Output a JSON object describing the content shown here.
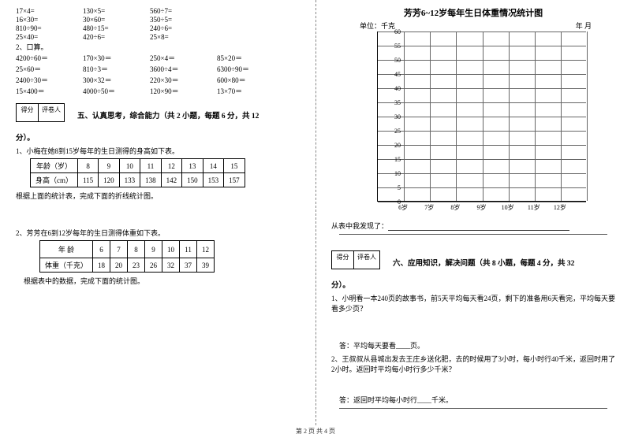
{
  "left": {
    "mult_rows": [
      [
        "17×4=",
        "130×5=",
        "560÷7="
      ],
      [
        "16×30=",
        "30×60=",
        "350÷5="
      ],
      [
        "810÷90=",
        "480÷15=",
        "240÷6="
      ],
      [
        "25×40=",
        "420÷6=",
        "25×8="
      ]
    ],
    "oral_label": "2、口算。",
    "oral_rows": [
      [
        "4200÷60＝",
        "170×30＝",
        "250×4＝",
        "85×20＝"
      ],
      [
        "25×60＝",
        "810÷3＝",
        "3600÷4＝",
        "6300÷90＝"
      ],
      [
        "2400÷30＝",
        "300×32＝",
        "220×30＝",
        "600×80＝"
      ],
      [
        "15×400＝",
        "4000÷50＝",
        "120×90＝",
        "13×70＝"
      ]
    ],
    "score_labels": [
      "得分",
      "评卷人"
    ],
    "section5_title": "五、认真思考，综合能力（共 2 小题，每题 6 分，共 12",
    "section5_tail": "分）。",
    "q1": "1、小梅在她8到15岁每年的生日测得的身高如下表。",
    "t1_head": [
      "年龄（岁）",
      "8",
      "9",
      "10",
      "11",
      "12",
      "13",
      "14",
      "15"
    ],
    "t1_row": [
      "身高（cm）",
      "115",
      "120",
      "133",
      "138",
      "142",
      "150",
      "153",
      "157"
    ],
    "q1_note": "根据上面的统计表，完成下面的折线统计图。",
    "q2": "2、芳芳在6到12岁每年的生日测得体重如下表。",
    "t2_head": [
      "年    龄",
      "6",
      "7",
      "8",
      "9",
      "10",
      "11",
      "12"
    ],
    "t2_row": [
      "体重（千克）",
      "18",
      "20",
      "23",
      "26",
      "32",
      "37",
      "39"
    ],
    "q2_note": "根据表中的数据，完成下面的统计图。"
  },
  "right": {
    "chart_title": "芳芳6~12岁每年生日体重情况统计图",
    "unit": "单位：千克",
    "date": "年    月",
    "y_ticks": [
      "60",
      "55",
      "50",
      "45",
      "40",
      "35",
      "30",
      "25",
      "20",
      "15",
      "10",
      "5",
      "0"
    ],
    "x_ticks": [
      "6岁",
      "7岁",
      "8岁",
      "9岁",
      "10岁",
      "11岁",
      "12岁"
    ],
    "finding": "从表中我发现了：",
    "score_labels": [
      "得分",
      "评卷人"
    ],
    "section6_title": "六、应用知识，解决问题（共 8 小题，每题 4 分，共 32",
    "section6_tail": "分）。",
    "p1": "1、小明看一本240页的故事书，前5天平均每天看24页，剩下的准备用6天看完，平均每天要看多少页？",
    "a1": "答：平均每天要看____页。",
    "p2": "2、王叔叔从县城出发去王庄乡送化肥，去的时候用了3小时，每小时行40千米，返回时用了2小时。返回时平均每小时行多少千米？",
    "a2": "答：返回时平均每小时行____千米。"
  },
  "footer": "第 2 页 共 4 页"
}
